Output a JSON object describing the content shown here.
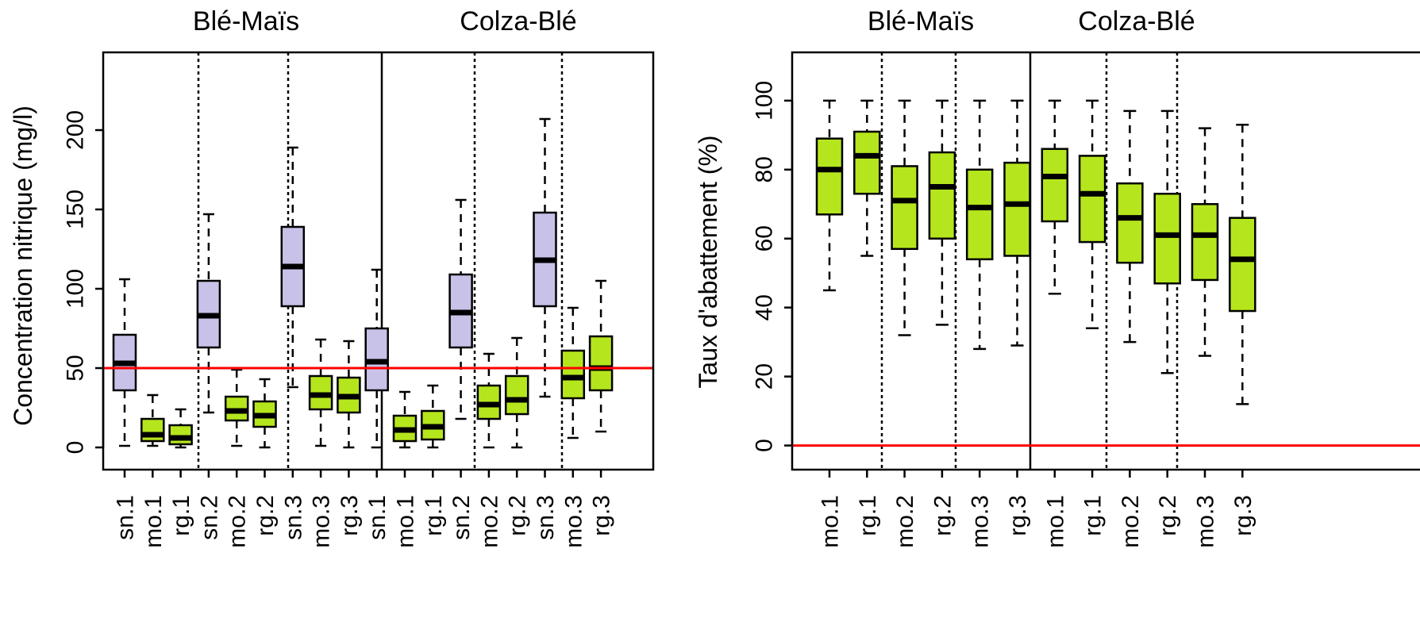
{
  "chart_data": [
    {
      "type": "boxplot",
      "ylabel": "Concentration nitrique (mg/l)",
      "ylim": [
        -14,
        249
      ],
      "y_ticks": [
        0,
        50,
        100,
        150,
        200
      ],
      "reference_line": {
        "y": 50,
        "color": "#ff0000"
      },
      "group_labels": [
        "Blé-Maïs",
        "Colza-Blé"
      ],
      "colors": {
        "sn": "#c8c2e8",
        "mo": "#b5e61d",
        "rg": "#b5e61d"
      },
      "boxes": [
        {
          "label": "sn.1",
          "kind": "sn",
          "min": 1,
          "q1": 36,
          "median": 53,
          "q3": 71,
          "max": 106
        },
        {
          "label": "mo.1",
          "kind": "mo",
          "min": 1,
          "q1": 4,
          "median": 8,
          "q3": 18,
          "max": 33
        },
        {
          "label": "rg.1",
          "kind": "rg",
          "min": 0,
          "q1": 2,
          "median": 6,
          "q3": 14,
          "max": 24
        },
        {
          "label": "sn.2",
          "kind": "sn",
          "min": 22,
          "q1": 63,
          "median": 83,
          "q3": 105,
          "max": 147
        },
        {
          "label": "mo.2",
          "kind": "mo",
          "min": 1,
          "q1": 17,
          "median": 23,
          "q3": 32,
          "max": 49
        },
        {
          "label": "rg.2",
          "kind": "rg",
          "min": 0,
          "q1": 13,
          "median": 20,
          "q3": 29,
          "max": 43
        },
        {
          "label": "sn.3",
          "kind": "sn",
          "min": 38,
          "q1": 89,
          "median": 114,
          "q3": 139,
          "max": 189
        },
        {
          "label": "mo.3",
          "kind": "mo",
          "min": 1,
          "q1": 24,
          "median": 33,
          "q3": 45,
          "max": 68
        },
        {
          "label": "rg.3",
          "kind": "rg",
          "min": 0,
          "q1": 22,
          "median": 32,
          "q3": 44,
          "max": 67
        },
        {
          "label": "sn.1",
          "kind": "sn",
          "min": 0,
          "q1": 36,
          "median": 54,
          "q3": 75,
          "max": 112
        },
        {
          "label": "mo.1",
          "kind": "mo",
          "min": 0,
          "q1": 4,
          "median": 11,
          "q3": 20,
          "max": 35
        },
        {
          "label": "rg.1",
          "kind": "rg",
          "min": 0,
          "q1": 5,
          "median": 13,
          "q3": 23,
          "max": 39
        },
        {
          "label": "sn.2",
          "kind": "sn",
          "min": 18,
          "q1": 63,
          "median": 85,
          "q3": 109,
          "max": 156
        },
        {
          "label": "mo.2",
          "kind": "mo",
          "min": 0,
          "q1": 18,
          "median": 27,
          "q3": 39,
          "max": 59
        },
        {
          "label": "rg.2",
          "kind": "rg",
          "min": 0,
          "q1": 21,
          "median": 30,
          "q3": 45,
          "max": 69
        },
        {
          "label": "sn.3",
          "kind": "sn",
          "min": 32,
          "q1": 89,
          "median": 118,
          "q3": 148,
          "max": 207
        },
        {
          "label": "mo.3",
          "kind": "mo",
          "min": 6,
          "q1": 31,
          "median": 44,
          "q3": 61,
          "max": 88
        },
        {
          "label": "rg.3",
          "kind": "rg",
          "min": 10,
          "q1": 36,
          "median": 50,
          "q3": 70,
          "max": 105
        }
      ]
    },
    {
      "type": "boxplot",
      "ylabel": "Taux d'abattement  (%)",
      "ylim": [
        -7,
        114
      ],
      "y_ticks": [
        0,
        20,
        40,
        60,
        80,
        100
      ],
      "reference_line": {
        "y": 0,
        "color": "#ff0000"
      },
      "group_labels": [
        "Blé-Maïs",
        "Colza-Blé"
      ],
      "colors": {
        "mo": "#b5e61d",
        "rg": "#b5e61d"
      },
      "boxes": [
        {
          "label": "mo.1",
          "kind": "mo",
          "min": 45,
          "q1": 67,
          "median": 80,
          "q3": 89,
          "max": 100
        },
        {
          "label": "rg.1",
          "kind": "rg",
          "min": 55,
          "q1": 73,
          "median": 84,
          "q3": 91,
          "max": 100
        },
        {
          "label": "mo.2",
          "kind": "mo",
          "min": 32,
          "q1": 57,
          "median": 71,
          "q3": 81,
          "max": 100
        },
        {
          "label": "rg.2",
          "kind": "rg",
          "min": 35,
          "q1": 60,
          "median": 75,
          "q3": 85,
          "max": 100
        },
        {
          "label": "mo.3",
          "kind": "mo",
          "min": 28,
          "q1": 54,
          "median": 69,
          "q3": 80,
          "max": 100
        },
        {
          "label": "rg.3",
          "kind": "rg",
          "min": 29,
          "q1": 55,
          "median": 70,
          "q3": 82,
          "max": 100
        },
        {
          "label": "mo.1",
          "kind": "mo",
          "min": 44,
          "q1": 65,
          "median": 78,
          "q3": 86,
          "max": 100
        },
        {
          "label": "rg.1",
          "kind": "rg",
          "min": 34,
          "q1": 59,
          "median": 73,
          "q3": 84,
          "max": 100
        },
        {
          "label": "mo.2",
          "kind": "mo",
          "min": 30,
          "q1": 53,
          "median": 66,
          "q3": 76,
          "max": 97
        },
        {
          "label": "rg.2",
          "kind": "rg",
          "min": 21,
          "q1": 47,
          "median": 61,
          "q3": 73,
          "max": 97
        },
        {
          "label": "mo.3",
          "kind": "mo",
          "min": 26,
          "q1": 48,
          "median": 61,
          "q3": 70,
          "max": 92
        },
        {
          "label": "rg.3",
          "kind": "rg",
          "min": 12,
          "q1": 39,
          "median": 54,
          "q3": 66,
          "max": 93
        }
      ]
    }
  ]
}
